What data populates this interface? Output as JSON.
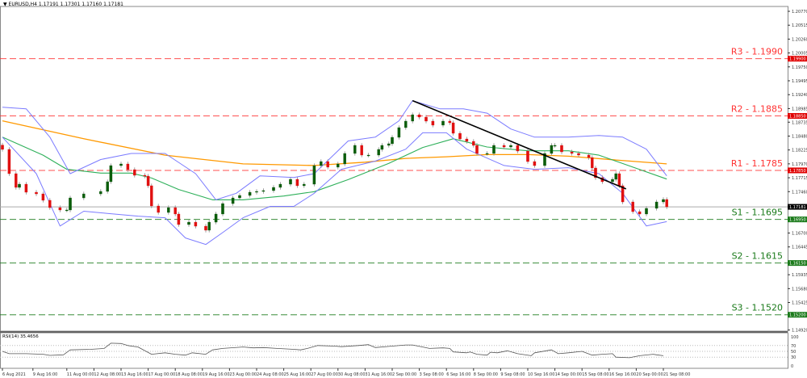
{
  "header": {
    "symbol": "EURUSD,H4",
    "open": "1.17191",
    "high": "1.17301",
    "low": "1.17160",
    "close": "1.17181"
  },
  "chart_data": {
    "type": "candlestick",
    "title": "EURUSD,H4",
    "ylim": [
      1.1492,
      1.2077
    ],
    "y_ticks": [
      "1.20770",
      "1.20515",
      "1.20260",
      "1.20005",
      "1.19750",
      "1.19495",
      "1.19240",
      "1.18985",
      "1.18735",
      "1.18480",
      "1.18225",
      "1.17970",
      "1.17715",
      "1.17460",
      "1.16700",
      "1.16445",
      "1.15935",
      "1.15680",
      "1.15425",
      "1.14920"
    ],
    "x_ticks": [
      {
        "bar": 0,
        "label": "6 Aug 2021"
      },
      {
        "bar": 9,
        "label": "9 Aug 16:00"
      },
      {
        "bar": 19,
        "label": "11 Aug 00:00"
      },
      {
        "bar": 27,
        "label": "12 Aug 08:00"
      },
      {
        "bar": 35,
        "label": "13 Aug 16:00"
      },
      {
        "bar": 43,
        "label": "17 Aug 00:00"
      },
      {
        "bar": 51,
        "label": "18 Aug 08:00"
      },
      {
        "bar": 59,
        "label": "19 Aug 16:00"
      },
      {
        "bar": 67,
        "label": "23 Aug 00:00"
      },
      {
        "bar": 75,
        "label": "24 Aug 08:00"
      },
      {
        "bar": 83,
        "label": "25 Aug 16:00"
      },
      {
        "bar": 91,
        "label": "27 Aug 00:00"
      },
      {
        "bar": 99,
        "label": "30 Aug 08:00"
      },
      {
        "bar": 107,
        "label": "31 Aug 16:00"
      },
      {
        "bar": 115,
        "label": "2 Sep 00:00"
      },
      {
        "bar": 123,
        "label": "3 Sep 08:00"
      },
      {
        "bar": 131,
        "label": "6 Sep 16:00"
      },
      {
        "bar": 139,
        "label": "8 Sep 00:00"
      },
      {
        "bar": 147,
        "label": "9 Sep 08:00"
      },
      {
        "bar": 155,
        "label": "10 Sep 16:00"
      },
      {
        "bar": 163,
        "label": "14 Sep 00:00"
      },
      {
        "bar": 171,
        "label": "15 Sep 08:00"
      },
      {
        "bar": 179,
        "label": "16 Sep 16:00"
      },
      {
        "bar": 187,
        "label": "20 Sep 00:00"
      },
      {
        "bar": 195,
        "label": "21 Sep 08:00"
      }
    ],
    "closes": [
      [
        0,
        1.18235
      ],
      [
        2,
        1.1779
      ],
      [
        4,
        1.17538
      ],
      [
        5,
        1.17597
      ],
      [
        7,
        1.17449
      ],
      [
        10,
        1.17419
      ],
      [
        12,
        1.17301
      ],
      [
        14,
        1.17167
      ],
      [
        17,
        1.17123
      ],
      [
        19,
        1.17123
      ],
      [
        20,
        1.17345
      ],
      [
        24,
        1.17419
      ],
      [
        29,
        1.17464
      ],
      [
        31,
        1.17642
      ],
      [
        32,
        1.17938
      ],
      [
        35,
        1.17968
      ],
      [
        37,
        1.17864
      ],
      [
        39,
        1.1776
      ],
      [
        42,
        1.17745
      ],
      [
        43,
        1.17568
      ],
      [
        44,
        1.17197
      ],
      [
        46,
        1.17078
      ],
      [
        49,
        1.17167
      ],
      [
        51,
        1.17049
      ],
      [
        52,
        1.16856
      ],
      [
        55,
        1.169
      ],
      [
        57,
        1.16826
      ],
      [
        60,
        1.16752
      ],
      [
        61,
        1.169
      ],
      [
        63,
        1.17049
      ],
      [
        65,
        1.17241
      ],
      [
        68,
        1.17345
      ],
      [
        70,
        1.1739
      ],
      [
        73,
        1.17449
      ],
      [
        75,
        1.17464
      ],
      [
        77,
        1.17479
      ],
      [
        80,
        1.17538
      ],
      [
        82,
        1.17597
      ],
      [
        85,
        1.17686
      ],
      [
        87,
        1.17568
      ],
      [
        89,
        1.17597
      ],
      [
        92,
        1.17938
      ],
      [
        94,
        1.18012
      ],
      [
        96,
        1.17909
      ],
      [
        99,
        1.17968
      ],
      [
        101,
        1.18161
      ],
      [
        104,
        1.18309
      ],
      [
        106,
        1.18131
      ],
      [
        108,
        1.18131
      ],
      [
        111,
        1.18235
      ],
      [
        112,
        1.18309
      ],
      [
        114,
        1.18339
      ],
      [
        115,
        1.18457
      ],
      [
        117,
        1.18635
      ],
      [
        119,
        1.18754
      ],
      [
        121,
        1.18872
      ],
      [
        123,
        1.18828
      ],
      [
        125,
        1.18754
      ],
      [
        127,
        1.1868
      ],
      [
        130,
        1.18754
      ],
      [
        132,
        1.18724
      ],
      [
        133,
        1.18531
      ],
      [
        135,
        1.18427
      ],
      [
        137,
        1.18383
      ],
      [
        139,
        1.18309
      ],
      [
        140,
        1.18161
      ],
      [
        143,
        1.18161
      ],
      [
        145,
        1.18309
      ],
      [
        148,
        1.18279
      ],
      [
        150,
        1.18309
      ],
      [
        152,
        1.18205
      ],
      [
        155,
        1.18012
      ],
      [
        157,
        1.17938
      ],
      [
        160,
        1.18161
      ],
      [
        162,
        1.18309
      ],
      [
        163,
        1.18309
      ],
      [
        165,
        1.1819
      ],
      [
        168,
        1.18161
      ],
      [
        170,
        1.18131
      ],
      [
        173,
        1.18086
      ],
      [
        174,
        1.17894
      ],
      [
        175,
        1.17716
      ],
      [
        177,
        1.17642
      ],
      [
        180,
        1.17686
      ],
      [
        181,
        1.1779
      ],
      [
        182,
        1.17568
      ],
      [
        183,
        1.17271
      ],
      [
        186,
        1.17093
      ],
      [
        188,
        1.17049
      ],
      [
        190,
        1.17153
      ],
      [
        193,
        1.17271
      ],
      [
        195,
        1.17316
      ],
      [
        196,
        1.17181
      ]
    ],
    "ma_orange": [
      [
        0,
        1.1876
      ],
      [
        24,
        1.1843
      ],
      [
        48,
        1.1813
      ],
      [
        71,
        1.1797
      ],
      [
        92,
        1.1794
      ],
      [
        107,
        1.18
      ],
      [
        119,
        1.1807
      ],
      [
        131,
        1.181
      ],
      [
        143,
        1.1814
      ],
      [
        155,
        1.1814
      ],
      [
        167,
        1.1811
      ],
      [
        181,
        1.1804
      ],
      [
        196,
        1.1797
      ]
    ],
    "ma_green": [
      [
        0,
        1.1846
      ],
      [
        12,
        1.1813
      ],
      [
        19,
        1.1787
      ],
      [
        29,
        1.178
      ],
      [
        38,
        1.178
      ],
      [
        44,
        1.1771
      ],
      [
        52,
        1.175
      ],
      [
        62,
        1.1731
      ],
      [
        71,
        1.1731
      ],
      [
        83,
        1.1738
      ],
      [
        92,
        1.1746
      ],
      [
        102,
        1.1768
      ],
      [
        114,
        1.1798
      ],
      [
        124,
        1.1827
      ],
      [
        133,
        1.1843
      ],
      [
        143,
        1.1828
      ],
      [
        155,
        1.1821
      ],
      [
        167,
        1.1821
      ],
      [
        176,
        1.1813
      ],
      [
        186,
        1.1791
      ],
      [
        196,
        1.1769
      ]
    ],
    "bb_upper": [
      [
        0,
        1.1901
      ],
      [
        7,
        1.1898
      ],
      [
        14,
        1.1846
      ],
      [
        20,
        1.1779
      ],
      [
        29,
        1.1805
      ],
      [
        38,
        1.1816
      ],
      [
        48,
        1.1816
      ],
      [
        57,
        1.1779
      ],
      [
        63,
        1.1731
      ],
      [
        69,
        1.1743
      ],
      [
        76,
        1.1775
      ],
      [
        86,
        1.1772
      ],
      [
        92,
        1.1779
      ],
      [
        102,
        1.1839
      ],
      [
        110,
        1.1846
      ],
      [
        117,
        1.1876
      ],
      [
        121,
        1.1913
      ],
      [
        129,
        1.1898
      ],
      [
        136,
        1.1898
      ],
      [
        143,
        1.189
      ],
      [
        150,
        1.1861
      ],
      [
        157,
        1.1846
      ],
      [
        167,
        1.1846
      ],
      [
        176,
        1.1849
      ],
      [
        183,
        1.1846
      ],
      [
        190,
        1.1824
      ],
      [
        196,
        1.1775
      ]
    ],
    "bb_lower": [
      [
        0,
        1.1846
      ],
      [
        10,
        1.1779
      ],
      [
        17,
        1.1683
      ],
      [
        24,
        1.171
      ],
      [
        31,
        1.1706
      ],
      [
        40,
        1.1701
      ],
      [
        48,
        1.1698
      ],
      [
        54,
        1.1661
      ],
      [
        60,
        1.1649
      ],
      [
        65,
        1.1671
      ],
      [
        71,
        1.1698
      ],
      [
        79,
        1.1719
      ],
      [
        86,
        1.1719
      ],
      [
        92,
        1.1743
      ],
      [
        100,
        1.1787
      ],
      [
        110,
        1.1802
      ],
      [
        119,
        1.1824
      ],
      [
        124,
        1.1854
      ],
      [
        131,
        1.1854
      ],
      [
        137,
        1.1824
      ],
      [
        148,
        1.1794
      ],
      [
        157,
        1.1787
      ],
      [
        167,
        1.179
      ],
      [
        176,
        1.1779
      ],
      [
        183,
        1.1743
      ],
      [
        190,
        1.1683
      ],
      [
        196,
        1.1691
      ]
    ],
    "trendline": [
      [
        121,
        1.1913
      ],
      [
        184,
        1.1751
      ]
    ],
    "levels": [
      {
        "name": "R3",
        "label": "R3 - 1.1990",
        "price": 1.199,
        "tag": "1.19900",
        "color": "#ff3333"
      },
      {
        "name": "R2",
        "label": "R2 - 1.1885",
        "price": 1.1885,
        "tag": "1.18850",
        "color": "#ff3333"
      },
      {
        "name": "R1",
        "label": "R1 - 1.1785",
        "price": 1.1785,
        "tag": "1.17850",
        "color": "#ff3333"
      },
      {
        "name": "S1",
        "label": "S1 - 1.1695",
        "price": 1.1695,
        "tag": "1.16950",
        "color": "#1a7a1a"
      },
      {
        "name": "S2",
        "label": "S2 - 1.1615",
        "price": 1.1615,
        "tag": "1.16150",
        "color": "#1a7a1a"
      },
      {
        "name": "S3",
        "label": "S3 - 1.1520",
        "price": 1.152,
        "tag": "1.15200",
        "color": "#1a7a1a"
      }
    ],
    "current_price": {
      "price": 1.17181,
      "tag": "1.17181"
    },
    "colors": {
      "bull": "#0a5c0a",
      "bear": "#e01010",
      "ma_orange": "#ff9900",
      "ma_green": "#2eb05a",
      "bb": "#7b7bff",
      "trend": "#000000"
    },
    "rsi": {
      "label": "RSI(14) 35.4656",
      "ticks": [
        "100",
        "70",
        "50",
        "30",
        "0"
      ],
      "levels": [
        70,
        50,
        30
      ],
      "values": [
        [
          0,
          50
        ],
        [
          2,
          42
        ],
        [
          7,
          42
        ],
        [
          12,
          40
        ],
        [
          14,
          36
        ],
        [
          18,
          38
        ],
        [
          20,
          55
        ],
        [
          26,
          57
        ],
        [
          30,
          60
        ],
        [
          32,
          78
        ],
        [
          35,
          77
        ],
        [
          37,
          70
        ],
        [
          40,
          65
        ],
        [
          44,
          40
        ],
        [
          48,
          45
        ],
        [
          51,
          40
        ],
        [
          54,
          37
        ],
        [
          56,
          45
        ],
        [
          60,
          40
        ],
        [
          62,
          55
        ],
        [
          65,
          60
        ],
        [
          71,
          65
        ],
        [
          74,
          62
        ],
        [
          77,
          63
        ],
        [
          81,
          60
        ],
        [
          86,
          57
        ],
        [
          88,
          55
        ],
        [
          90,
          60
        ],
        [
          93,
          70
        ],
        [
          98,
          68
        ],
        [
          100,
          66
        ],
        [
          105,
          70
        ],
        [
          108,
          73
        ],
        [
          110,
          63
        ],
        [
          114,
          67
        ],
        [
          119,
          72
        ],
        [
          121,
          72
        ],
        [
          124,
          65
        ],
        [
          126,
          60
        ],
        [
          130,
          62
        ],
        [
          132,
          60
        ],
        [
          133,
          48
        ],
        [
          137,
          45
        ],
        [
          138,
          48
        ],
        [
          140,
          40
        ],
        [
          143,
          37
        ],
        [
          144,
          47
        ],
        [
          146,
          45
        ],
        [
          149,
          52
        ],
        [
          152,
          42
        ],
        [
          156,
          35
        ],
        [
          157,
          45
        ],
        [
          162,
          55
        ],
        [
          164,
          42
        ],
        [
          167,
          45
        ],
        [
          171,
          50
        ],
        [
          174,
          37
        ],
        [
          177,
          40
        ],
        [
          180,
          42
        ],
        [
          181,
          30
        ],
        [
          185,
          28
        ],
        [
          188,
          35
        ],
        [
          192,
          40
        ],
        [
          193,
          38
        ],
        [
          195,
          35
        ]
      ]
    }
  }
}
